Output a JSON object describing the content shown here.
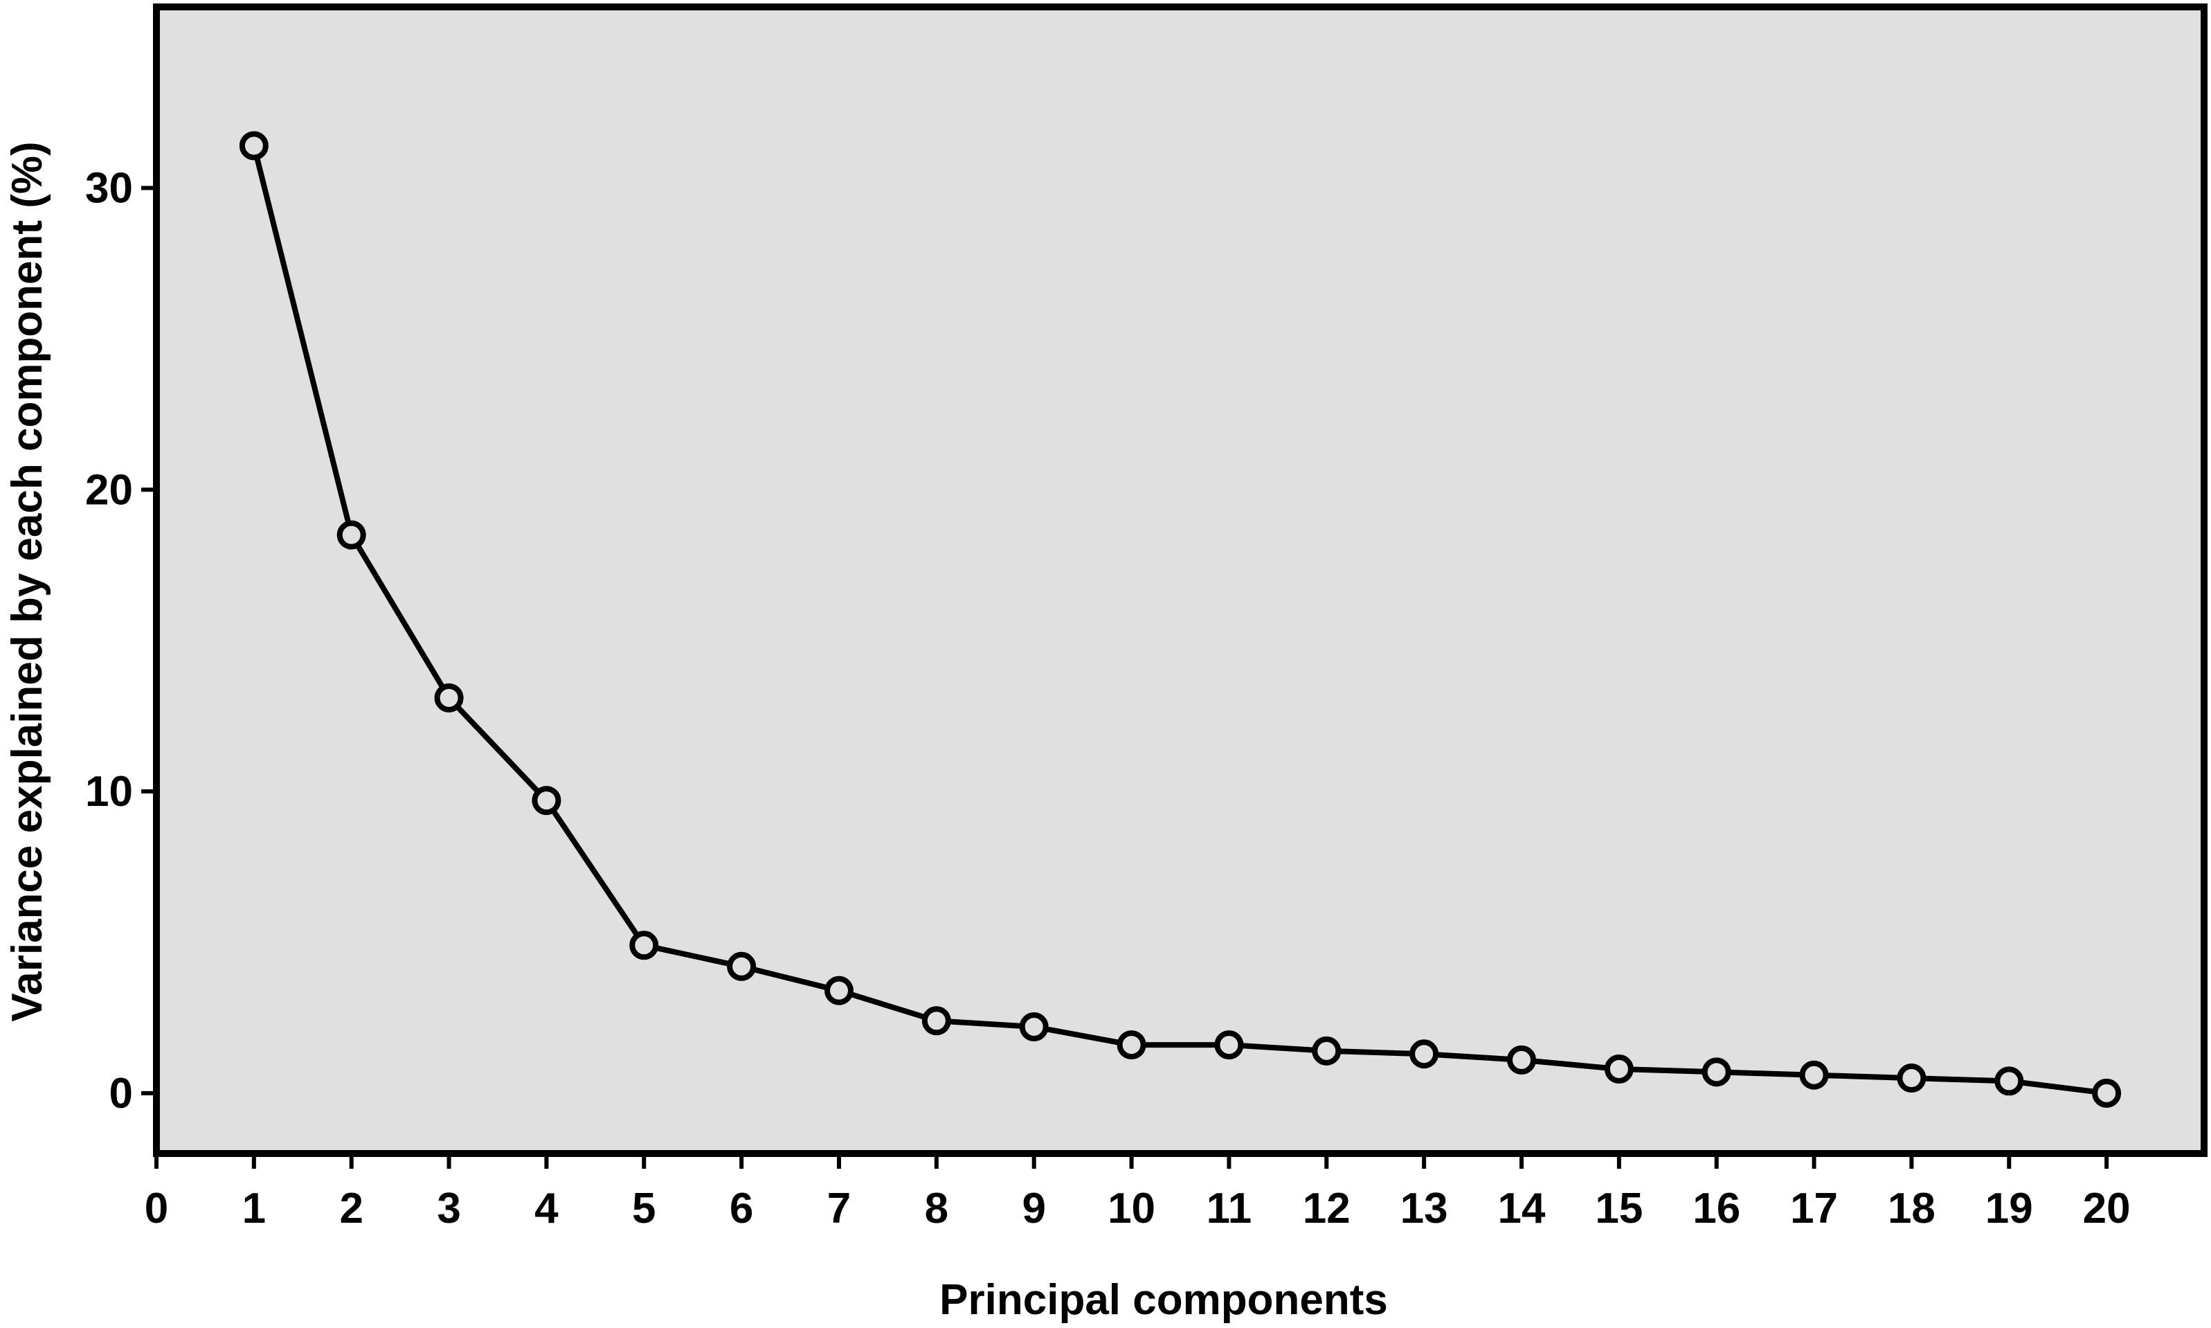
{
  "chart_data": {
    "type": "line",
    "title": "",
    "xlabel": "Principal components",
    "ylabel": "Variance explained by each component (%)",
    "xlim": [
      0,
      21
    ],
    "ylim": [
      -2,
      36
    ],
    "xticks": [
      0,
      1,
      2,
      3,
      4,
      5,
      6,
      7,
      8,
      9,
      10,
      11,
      12,
      13,
      14,
      15,
      16,
      17,
      18,
      19,
      20
    ],
    "yticks": [
      0,
      10,
      20,
      30
    ],
    "grid": false,
    "legend": "none",
    "series": [
      {
        "x": [
          1,
          2,
          3,
          4,
          5,
          6,
          7,
          8,
          9,
          10,
          11,
          12,
          13,
          14,
          15,
          16,
          17,
          18,
          19,
          20
        ],
        "values": [
          31.4,
          18.5,
          13.1,
          9.7,
          4.9,
          4.2,
          3.4,
          2.4,
          2.2,
          1.6,
          1.6,
          1.4,
          1.3,
          1.1,
          0.8,
          0.7,
          0.6,
          0.5,
          0.4,
          0.0
        ]
      }
    ],
    "colors": {
      "plot_background": "#e0e0e0",
      "line": "#000000",
      "marker_edge": "#000000",
      "frame": "#000000"
    },
    "marker": "open-circle"
  }
}
